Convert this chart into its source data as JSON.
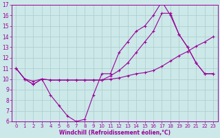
{
  "background_color": "#cce8e8",
  "grid_color": "#aacccc",
  "line_color": "#990099",
  "xlim": [
    -0.5,
    23.5
  ],
  "ylim": [
    6,
    17
  ],
  "xlabel": "Windchill (Refroidissement éolien,°C)",
  "xticks": [
    0,
    1,
    2,
    3,
    4,
    5,
    6,
    7,
    8,
    9,
    10,
    11,
    12,
    13,
    14,
    15,
    16,
    17,
    18,
    19,
    20,
    21,
    22,
    23
  ],
  "yticks": [
    6,
    7,
    8,
    9,
    10,
    11,
    12,
    13,
    14,
    15,
    16,
    17
  ],
  "series1_x": [
    0,
    1,
    2,
    3,
    4,
    5,
    6,
    7,
    8,
    9,
    10,
    11,
    12,
    13,
    14,
    15,
    16,
    17,
    18,
    19,
    20,
    21,
    22,
    23
  ],
  "series1_y": [
    11.0,
    10.0,
    9.5,
    10.0,
    8.5,
    7.5,
    6.5,
    6.0,
    6.2,
    8.5,
    10.5,
    10.5,
    12.5,
    13.5,
    14.5,
    15.0,
    16.0,
    17.3,
    16.0,
    14.2,
    13.0,
    11.5,
    10.5,
    10.5
  ],
  "series2_x": [
    0,
    1,
    2,
    3,
    4,
    5,
    6,
    7,
    8,
    9,
    10,
    11,
    12,
    13,
    14,
    15,
    16,
    17,
    18,
    19,
    20,
    21,
    22,
    23
  ],
  "series2_y": [
    11.0,
    10.0,
    9.8,
    10.0,
    9.9,
    9.9,
    9.9,
    9.9,
    9.9,
    9.9,
    9.9,
    10.0,
    10.1,
    10.3,
    10.5,
    10.6,
    10.8,
    11.2,
    11.7,
    12.2,
    12.6,
    13.1,
    13.5,
    14.0
  ],
  "series3_x": [
    0,
    1,
    2,
    3,
    4,
    5,
    6,
    7,
    8,
    9,
    10,
    11,
    12,
    13,
    14,
    15,
    16,
    17,
    18,
    19,
    20,
    21,
    22,
    23
  ],
  "series3_y": [
    11.0,
    10.0,
    9.5,
    10.0,
    9.9,
    9.9,
    9.9,
    9.9,
    9.9,
    9.9,
    9.9,
    10.3,
    10.8,
    11.5,
    12.5,
    13.5,
    14.5,
    16.2,
    16.2,
    14.2,
    13.0,
    11.5,
    10.5,
    10.5
  ]
}
